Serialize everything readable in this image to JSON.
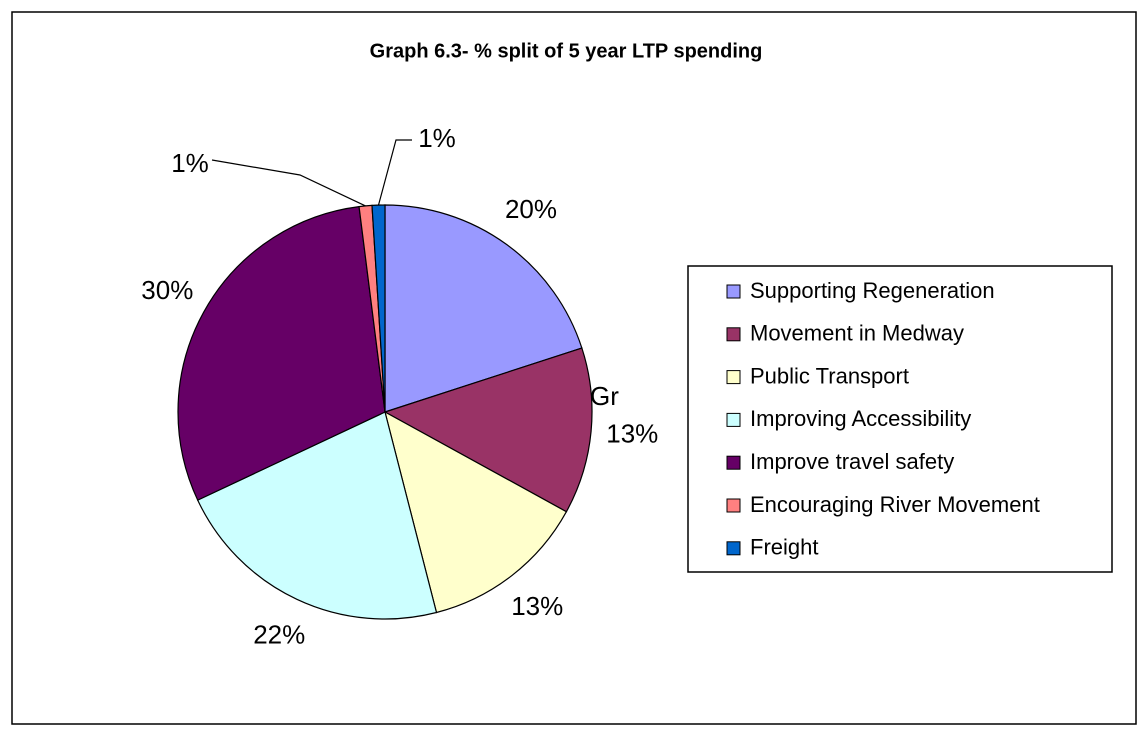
{
  "chart_data": {
    "type": "pie",
    "title": "Graph 6.3- % split of 5 year LTP spending",
    "categories": [
      "Supporting Regeneration",
      "Movement in Medway",
      "Public Transport",
      "Improving Accessibility",
      "Improve travel safety",
      "Encouraging River Movement",
      "Freight"
    ],
    "values": [
      20,
      13,
      13,
      22,
      30,
      1,
      1
    ],
    "value_labels": [
      "20%",
      "13%",
      "13%",
      "22%",
      "30%",
      "1%",
      "1%"
    ],
    "colors": [
      "#9999ff",
      "#993366",
      "#ffffcc",
      "#ccffff",
      "#660066",
      "#ff8080",
      "#0066cc"
    ],
    "annotations": [
      "Gr"
    ],
    "legend": "right"
  }
}
